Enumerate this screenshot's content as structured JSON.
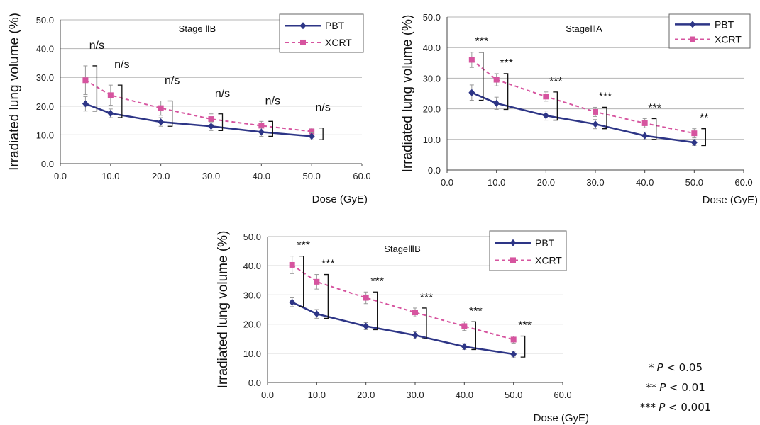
{
  "chart_data": [
    {
      "type": "line",
      "title": "Stage ⅡB",
      "xlabel": "Dose (GyE)",
      "ylabel": "Irradiated lung volume (%)",
      "xlim": [
        0,
        60
      ],
      "ylim": [
        0,
        50
      ],
      "x_ticks": [
        "0.0",
        "10.0",
        "20.0",
        "30.0",
        "40.0",
        "50.0",
        "60.0"
      ],
      "y_ticks": [
        "0.0",
        "10.0",
        "20.0",
        "30.0",
        "40.0",
        "50.0"
      ],
      "x": [
        5,
        10,
        20,
        30,
        40,
        50
      ],
      "series": [
        {
          "name": "PBT",
          "values": [
            20.8,
            17.5,
            14.5,
            13.0,
            11.0,
            9.5
          ],
          "err": [
            2.5,
            1.5,
            1.5,
            1.5,
            1.5,
            1.2
          ]
        },
        {
          "name": "XCRT",
          "values": [
            29.0,
            23.8,
            19.3,
            15.5,
            13.2,
            11.2
          ],
          "err": [
            5.0,
            3.5,
            2.5,
            1.8,
            1.5,
            1.2
          ]
        }
      ],
      "significance": [
        "n/s",
        "n/s",
        "n/s",
        "n/s",
        "n/s",
        "n/s"
      ],
      "legend": "top-right"
    },
    {
      "type": "line",
      "title": "StageⅢA",
      "xlabel": "Dose (GyE)",
      "ylabel": "Irradiated lung volume (%)",
      "xlim": [
        0,
        60
      ],
      "ylim": [
        0,
        50
      ],
      "x_ticks": [
        "0.0",
        "10.0",
        "20.0",
        "30.0",
        "40.0",
        "50.0",
        "60.0"
      ],
      "y_ticks": [
        "0.0",
        "10.0",
        "20.0",
        "30.0",
        "40.0",
        "50.0"
      ],
      "x": [
        5,
        10,
        20,
        30,
        40,
        50
      ],
      "series": [
        {
          "name": "PBT",
          "values": [
            25.3,
            21.8,
            17.8,
            15.0,
            11.2,
            9.0
          ],
          "err": [
            2.5,
            2.0,
            1.5,
            1.5,
            1.2,
            1.0
          ]
        },
        {
          "name": "XCRT",
          "values": [
            36.0,
            29.5,
            24.0,
            19.0,
            15.3,
            12.0
          ],
          "err": [
            2.5,
            2.0,
            1.5,
            1.5,
            1.5,
            1.5
          ]
        }
      ],
      "significance": [
        "***",
        "***",
        "***",
        "***",
        "***",
        "**"
      ],
      "legend": "top-right"
    },
    {
      "type": "line",
      "title": "StageⅢB",
      "xlabel": "Dose (GyE)",
      "ylabel": "Irradiated lung volume (%)",
      "xlim": [
        0,
        60
      ],
      "ylim": [
        0,
        50
      ],
      "x_ticks": [
        "0.0",
        "10.0",
        "20.0",
        "30.0",
        "40.0",
        "50.0",
        "60.0"
      ],
      "y_ticks": [
        "0.0",
        "10.0",
        "20.0",
        "30.0",
        "40.0",
        "50.0"
      ],
      "x": [
        5,
        10,
        20,
        30,
        40,
        50
      ],
      "series": [
        {
          "name": "PBT",
          "values": [
            27.5,
            23.5,
            19.3,
            16.2,
            12.3,
            9.7
          ],
          "err": [
            1.5,
            1.5,
            1.2,
            1.2,
            1.0,
            1.0
          ]
        },
        {
          "name": "XCRT",
          "values": [
            40.3,
            34.5,
            29.0,
            24.0,
            19.3,
            14.7
          ],
          "err": [
            3.0,
            2.5,
            2.0,
            1.5,
            1.5,
            1.2
          ]
        }
      ],
      "significance": [
        "***",
        "***",
        "***",
        "***",
        "***",
        "***"
      ],
      "legend": "top-right"
    }
  ],
  "p_value_key": [
    {
      "stars": "*",
      "label": "P",
      "rest": " < 0.05"
    },
    {
      "stars": "**",
      "label": "P",
      "rest": " < 0.01"
    },
    {
      "stars": "***",
      "label": "P",
      "rest": " < 0.001"
    }
  ],
  "colors": {
    "PBT": "#2d3586",
    "XCRT": "#d6549f",
    "errbar": "#999999",
    "axis": "#444444",
    "grid": "#b4b4b4"
  }
}
